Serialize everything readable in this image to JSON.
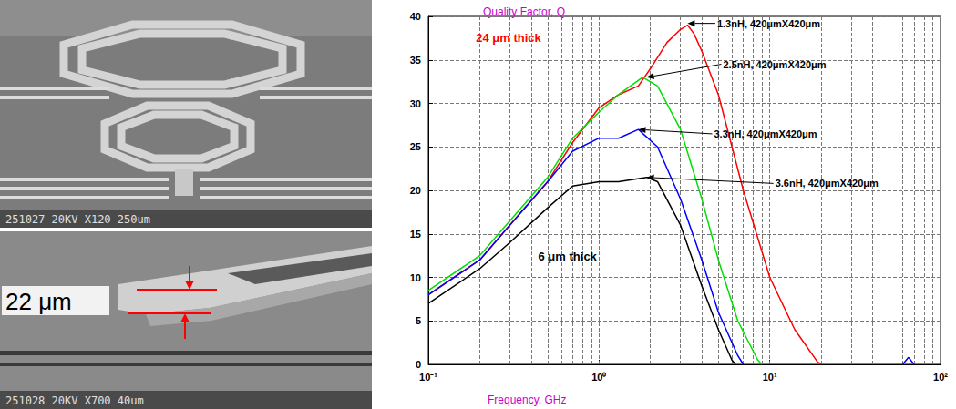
{
  "panels": [
    {
      "caption": "251027 20KV X120 250um"
    },
    {
      "caption": "251028 20KV X700 40um",
      "dimension_label": "22 μm"
    }
  ],
  "chart_data": {
    "type": "line",
    "title": "Quality Factor, Q",
    "x_label": "Frequency, GHz",
    "log": "x",
    "grid": true,
    "xlim": [
      0.1,
      100
    ],
    "xticks": [
      {
        "value": 0.1,
        "label": "10⁻¹"
      },
      {
        "value": 1,
        "label": "10⁰"
      },
      {
        "value": 10,
        "label": "10¹"
      },
      {
        "value": 100,
        "label": "10²"
      }
    ],
    "ylim": [
      0,
      40
    ],
    "yticks": [
      0,
      5,
      10,
      15,
      20,
      25,
      30,
      35,
      40
    ],
    "series": [
      {
        "name": "1.3nH, 420μmX420μm",
        "color": "#ff0000",
        "x": [
          0.1,
          0.2,
          0.3,
          0.5,
          0.7,
          1,
          1.3,
          1.7,
          2,
          2.5,
          3,
          3.3,
          3.6,
          4,
          5,
          7,
          10,
          14,
          19,
          20
        ],
        "values": [
          8,
          12,
          16,
          21,
          25.5,
          29.5,
          31,
          32,
          34,
          37,
          38.5,
          39,
          38,
          36,
          31,
          20,
          10,
          4,
          0.3,
          0
        ],
        "label_at": [
          4.8,
          39.2
        ],
        "arrow_to": [
          3.3,
          39.2
        ]
      },
      {
        "name": "2.5nH, 420μmX420μm",
        "color": "#00e000",
        "x": [
          0.1,
          0.2,
          0.3,
          0.5,
          0.7,
          1,
          1.3,
          1.8,
          2.2,
          3,
          4,
          5,
          6.5,
          8.5,
          9
        ],
        "values": [
          8.5,
          12.5,
          16.5,
          21.5,
          26,
          29,
          31,
          33,
          32,
          27,
          19,
          12,
          5,
          0.5,
          0
        ],
        "label_at": [
          5.2,
          34.5
        ],
        "arrow_to": [
          1.9,
          33
        ]
      },
      {
        "name": "3.3nH, 420μmX420μm",
        "color": "#0000ff",
        "x": [
          0.1,
          0.2,
          0.3,
          0.5,
          0.7,
          1,
          1.3,
          1.7,
          2.2,
          3,
          4,
          5,
          6.5,
          7,
          30,
          60,
          65,
          70
        ],
        "values": [
          8,
          12,
          16,
          21,
          24.5,
          26,
          26,
          27,
          25,
          19,
          12,
          6,
          1,
          0,
          null,
          0,
          0.8,
          0
        ],
        "label_at": [
          4.6,
          26.5
        ],
        "arrow_to": [
          1.7,
          27
        ]
      },
      {
        "name": "3.6nH, 420μmX420μm",
        "color": "#000000",
        "x": [
          0.1,
          0.2,
          0.3,
          0.5,
          0.7,
          1,
          1.3,
          1.9,
          2.2,
          3,
          4,
          5,
          6,
          6.3
        ],
        "values": [
          7,
          11,
          14,
          18,
          20.5,
          21,
          21,
          21.5,
          21,
          16,
          9,
          4,
          0.5,
          0
        ],
        "label_at": [
          10.5,
          20.8
        ],
        "arrow_to": [
          1.9,
          21.5
        ]
      }
    ],
    "annotations": [
      {
        "text": "24 μm thick",
        "x": 0.19,
        "y": 37.5,
        "color": "#ff0000"
      },
      {
        "text": "6 μm thick",
        "x": 0.44,
        "y": 12.4,
        "color": "#000000"
      }
    ]
  }
}
